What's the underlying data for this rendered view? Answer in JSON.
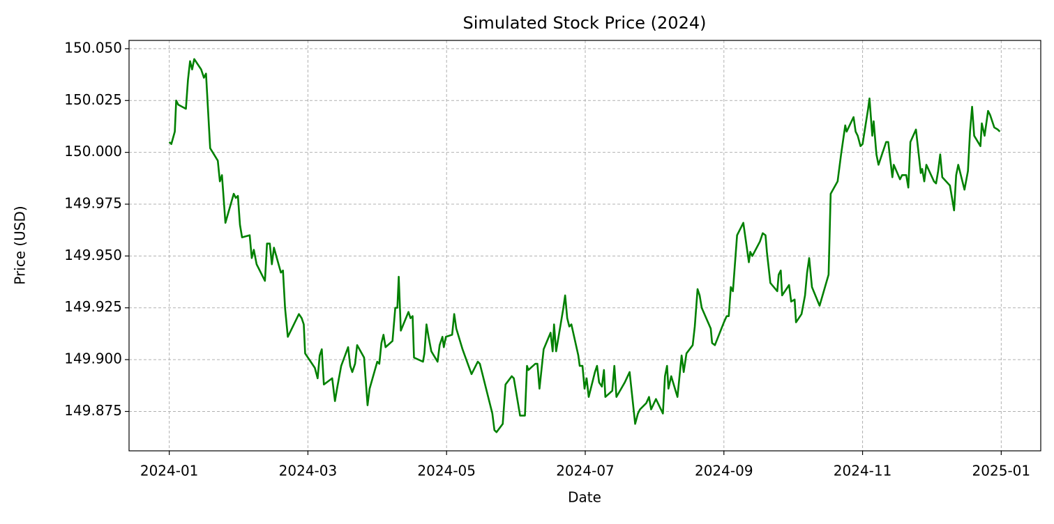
{
  "chart_data": {
    "type": "line",
    "title": "Simulated Stock Price (2024)",
    "x_label": "Date",
    "y_label": "Price (USD)",
    "x": [
      0.0,
      0.03,
      0.08,
      0.1,
      0.13,
      0.24,
      0.27,
      0.3,
      0.33,
      0.36,
      0.46,
      0.5,
      0.53,
      0.59,
      0.7,
      0.73,
      0.76,
      0.81,
      0.93,
      0.96,
      0.99,
      1.02,
      1.05,
      1.16,
      1.19,
      1.22,
      1.26,
      1.38,
      1.41,
      1.45,
      1.48,
      1.51,
      1.61,
      1.64,
      1.67,
      1.71,
      1.87,
      1.91,
      1.94,
      1.96,
      2.1,
      2.14,
      2.17,
      2.2,
      2.23,
      2.35,
      2.39,
      2.42,
      2.48,
      2.58,
      2.61,
      2.64,
      2.68,
      2.71,
      2.81,
      2.86,
      2.89,
      3.0,
      3.03,
      3.06,
      3.09,
      3.12,
      3.22,
      3.26,
      3.29,
      3.31,
      3.34,
      3.45,
      3.48,
      3.51,
      3.53,
      3.66,
      3.68,
      3.71,
      3.74,
      3.78,
      3.87,
      3.9,
      3.94,
      3.96,
      3.99,
      4.08,
      4.11,
      4.14,
      4.23,
      4.36,
      4.45,
      4.48,
      4.51,
      4.6,
      4.66,
      4.69,
      4.72,
      4.81,
      4.85,
      4.94,
      4.97,
      5.06,
      5.13,
      5.16,
      5.18,
      5.28,
      5.31,
      5.34,
      5.4,
      5.5,
      5.53,
      5.55,
      5.58,
      5.68,
      5.71,
      5.74,
      5.77,
      5.8,
      5.9,
      5.92,
      5.96,
      5.99,
      6.02,
      6.05,
      6.14,
      6.17,
      6.2,
      6.24,
      6.27,
      6.29,
      6.39,
      6.42,
      6.45,
      6.57,
      6.64,
      6.72,
      6.76,
      6.79,
      6.88,
      6.92,
      6.95,
      7.02,
      7.12,
      7.15,
      7.18,
      7.2,
      7.24,
      7.33,
      7.39,
      7.42,
      7.46,
      7.55,
      7.58,
      7.62,
      7.65,
      7.68,
      7.81,
      7.83,
      7.87,
      8.0,
      8.04,
      8.07,
      8.1,
      8.13,
      8.19,
      8.28,
      8.36,
      8.38,
      8.41,
      8.52,
      8.56,
      8.6,
      8.62,
      8.67,
      8.77,
      8.79,
      8.82,
      8.84,
      8.94,
      8.97,
      9.02,
      9.04,
      9.12,
      9.17,
      9.2,
      9.23,
      9.27,
      9.38,
      9.51,
      9.54,
      9.64,
      9.69,
      9.75,
      9.77,
      9.87,
      9.9,
      9.93,
      9.97,
      10.0,
      10.08,
      10.1,
      10.14,
      10.16,
      10.2,
      10.23,
      10.34,
      10.37,
      10.43,
      10.45,
      10.54,
      10.57,
      10.63,
      10.66,
      10.69,
      10.77,
      10.84,
      10.86,
      10.89,
      10.92,
      11.03,
      11.06,
      11.09,
      11.12,
      11.15,
      11.26,
      11.32,
      11.35,
      11.38,
      11.47,
      11.52,
      11.55,
      11.58,
      11.61,
      11.7,
      11.72,
      11.76,
      11.81,
      11.84,
      11.9,
      11.95,
      11.98
    ],
    "series": [
      {
        "name": "Price",
        "color": "#008000",
        "values": [
          150.005,
          150.004,
          150.01,
          150.025,
          150.023,
          150.021,
          150.035,
          150.044,
          150.04,
          150.045,
          150.04,
          150.036,
          150.038,
          150.002,
          149.996,
          149.986,
          149.989,
          149.966,
          149.98,
          149.978,
          149.979,
          149.965,
          149.959,
          149.96,
          149.949,
          149.953,
          149.946,
          149.938,
          149.956,
          149.956,
          149.946,
          149.954,
          149.942,
          149.943,
          149.925,
          149.911,
          149.922,
          149.92,
          149.917,
          149.903,
          149.896,
          149.891,
          149.902,
          149.905,
          149.888,
          149.891,
          149.88,
          149.886,
          149.897,
          149.906,
          149.897,
          149.894,
          149.898,
          149.907,
          149.901,
          149.878,
          149.886,
          149.899,
          149.898,
          149.908,
          149.912,
          149.906,
          149.909,
          149.925,
          149.925,
          149.94,
          149.914,
          149.923,
          149.92,
          149.921,
          149.901,
          149.899,
          149.903,
          149.917,
          149.911,
          149.904,
          149.899,
          149.907,
          149.911,
          149.906,
          149.911,
          149.912,
          149.922,
          149.915,
          149.905,
          149.893,
          149.899,
          149.898,
          149.894,
          149.882,
          149.874,
          149.866,
          149.865,
          149.869,
          149.888,
          149.892,
          149.891,
          149.873,
          149.873,
          149.897,
          149.895,
          149.898,
          149.898,
          149.886,
          149.905,
          149.913,
          149.904,
          149.917,
          149.904,
          149.924,
          149.931,
          149.92,
          149.916,
          149.917,
          149.902,
          149.897,
          149.897,
          149.886,
          149.891,
          149.882,
          149.894,
          149.897,
          149.889,
          149.887,
          149.895,
          149.882,
          149.885,
          149.897,
          149.882,
          149.889,
          149.894,
          149.869,
          149.874,
          149.876,
          149.879,
          149.882,
          149.876,
          149.881,
          149.874,
          149.892,
          149.897,
          149.886,
          149.892,
          149.882,
          149.902,
          149.894,
          149.903,
          149.907,
          149.916,
          149.934,
          149.931,
          149.925,
          149.915,
          149.908,
          149.907,
          149.918,
          149.921,
          149.921,
          149.935,
          149.933,
          149.96,
          149.966,
          149.947,
          149.952,
          149.95,
          149.957,
          149.961,
          149.96,
          149.952,
          149.937,
          149.933,
          149.941,
          149.943,
          149.931,
          149.936,
          149.928,
          149.929,
          149.918,
          149.922,
          149.931,
          149.942,
          149.949,
          149.935,
          149.926,
          149.941,
          149.98,
          149.986,
          149.999,
          150.013,
          150.01,
          150.017,
          150.01,
          150.008,
          150.003,
          150.004,
          150.021,
          150.026,
          150.008,
          150.015,
          149.999,
          149.994,
          150.005,
          150.005,
          149.988,
          149.994,
          149.987,
          149.989,
          149.989,
          149.983,
          150.005,
          150.011,
          149.99,
          149.992,
          149.986,
          149.994,
          149.986,
          149.985,
          149.991,
          149.999,
          149.988,
          149.984,
          149.972,
          149.989,
          149.994,
          149.982,
          149.991,
          150.01,
          150.022,
          150.008,
          150.003,
          150.014,
          150.008,
          150.02,
          150.018,
          150.012,
          150.011,
          150.01
        ]
      }
    ],
    "xlim": [
      -0.58,
      12.57
    ],
    "xticks": [
      {
        "value": 0,
        "label": "2024-01"
      },
      {
        "value": 2,
        "label": "2024-03"
      },
      {
        "value": 4,
        "label": "2024-05"
      },
      {
        "value": 6,
        "label": "2024-07"
      },
      {
        "value": 8,
        "label": "2024-09"
      },
      {
        "value": 10,
        "label": "2024-11"
      },
      {
        "value": 12,
        "label": "2025-01"
      }
    ],
    "ylim": [
      149.856,
      150.054
    ],
    "yticks": [
      149.875,
      {
        "value": 149.9,
        "label": "149.900"
      },
      149.925,
      {
        "value": 149.95,
        "label": "149.950"
      },
      149.975,
      {
        "value": 150,
        "label": "150.000"
      },
      150.025,
      {
        "value": 150.05,
        "label": "150.050"
      }
    ],
    "grid": true
  }
}
